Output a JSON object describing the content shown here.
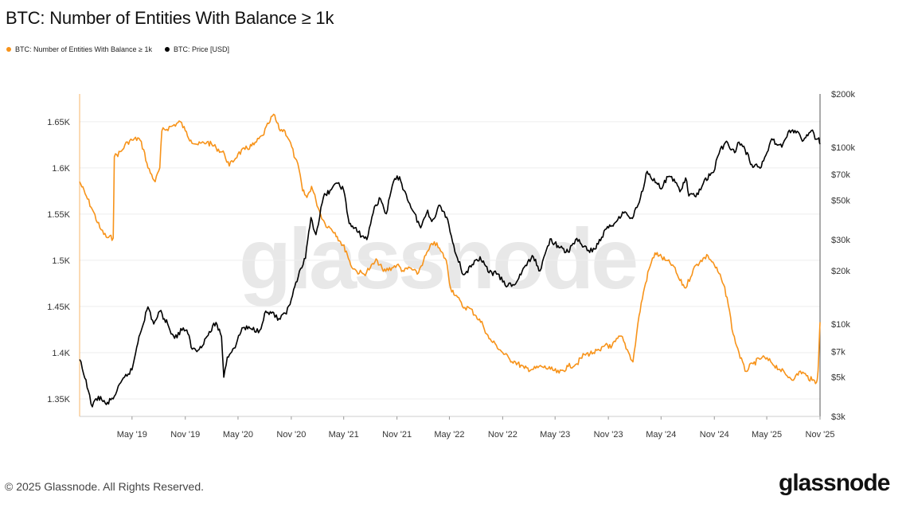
{
  "title": "BTC: Number of Entities With Balance ≥ 1k",
  "footer": "© 2025 Glassnode. All Rights Reserved.",
  "brand": "glassnode",
  "watermark": "glassnode",
  "colors": {
    "entities": "#f7931a",
    "price": "#000000",
    "grid": "#eeeeee",
    "axis": "#cccccc"
  },
  "chart_data": {
    "type": "line",
    "title": "BTC: Number of Entities With Balance ≥ 1k",
    "legend": "top-left",
    "grid": true,
    "x_ticks": [
      "May '19",
      "Nov '19",
      "May '20",
      "Nov '20",
      "May '21",
      "Nov '21",
      "May '22",
      "Nov '22",
      "May '23",
      "Nov '23",
      "May '24",
      "Nov '24",
      "May '25",
      "Nov '25"
    ],
    "x_tick_dates": [
      "2019-05-01",
      "2019-11-01",
      "2020-05-01",
      "2020-11-01",
      "2021-05-01",
      "2021-11-01",
      "2022-05-01",
      "2022-11-01",
      "2023-05-01",
      "2023-11-01",
      "2024-05-01",
      "2024-11-01",
      "2025-05-01",
      "2025-11-01"
    ],
    "xlim": [
      "2018-11-01",
      "2025-11-01"
    ],
    "left_axis": {
      "ticks": [
        1350000,
        1400000,
        1450000,
        1500000,
        1550000,
        1600000,
        1650000
      ],
      "tick_labels": [
        "1.35K",
        "1.4K",
        "1.45K",
        "1.5K",
        "1.55K",
        "1.6K",
        "1.65K"
      ],
      "ylim": [
        1331000,
        1680000
      ]
    },
    "right_axis": {
      "scale": "log",
      "ticks": [
        3000,
        5000,
        7000,
        10000,
        20000,
        30000,
        50000,
        70000,
        100000,
        200000
      ],
      "tick_labels": [
        "$3k",
        "$5k",
        "$7k",
        "$10k",
        "$20k",
        "$30k",
        "$50k",
        "$70k",
        "$100k",
        "$200k"
      ],
      "ylim": [
        3000,
        200000
      ]
    },
    "series": [
      {
        "name": "BTC: Number of Entities With Balance ≥ 1k",
        "axis": "left",
        "color": "#f7931a",
        "points": [
          [
            "2018-11-01",
            1585000
          ],
          [
            "2018-11-20",
            1572000
          ],
          [
            "2018-12-15",
            1555000
          ],
          [
            "2019-01-10",
            1535000
          ],
          [
            "2019-02-01",
            1525000
          ],
          [
            "2019-02-25",
            1524000
          ],
          [
            "2019-03-01",
            1612000
          ],
          [
            "2019-03-25",
            1618000
          ],
          [
            "2019-04-15",
            1628000
          ],
          [
            "2019-05-01",
            1630000
          ],
          [
            "2019-05-25",
            1632000
          ],
          [
            "2019-06-10",
            1620000
          ],
          [
            "2019-06-25",
            1600000
          ],
          [
            "2019-07-20",
            1585000
          ],
          [
            "2019-08-05",
            1600000
          ],
          [
            "2019-08-12",
            1640000
          ],
          [
            "2019-09-15",
            1645000
          ],
          [
            "2019-10-15",
            1650000
          ],
          [
            "2019-11-01",
            1640000
          ],
          [
            "2019-11-20",
            1630000
          ],
          [
            "2019-12-15",
            1625000
          ],
          [
            "2020-01-15",
            1628000
          ],
          [
            "2020-02-15",
            1622000
          ],
          [
            "2020-03-15",
            1615000
          ],
          [
            "2020-04-01",
            1602000
          ],
          [
            "2020-05-01",
            1615000
          ],
          [
            "2020-05-25",
            1620000
          ],
          [
            "2020-06-25",
            1625000
          ],
          [
            "2020-07-25",
            1635000
          ],
          [
            "2020-08-15",
            1648000
          ],
          [
            "2020-09-01",
            1658000
          ],
          [
            "2020-09-20",
            1642000
          ],
          [
            "2020-10-10",
            1640000
          ],
          [
            "2020-10-25",
            1630000
          ],
          [
            "2020-11-15",
            1610000
          ],
          [
            "2020-11-28",
            1598000
          ],
          [
            "2020-12-10",
            1575000
          ],
          [
            "2020-12-25",
            1568000
          ],
          [
            "2021-01-10",
            1580000
          ],
          [
            "2021-01-25",
            1565000
          ],
          [
            "2021-02-10",
            1550000
          ],
          [
            "2021-02-25",
            1540000
          ],
          [
            "2021-03-15",
            1535000
          ],
          [
            "2021-04-01",
            1530000
          ],
          [
            "2021-04-20",
            1520000
          ],
          [
            "2021-05-10",
            1510000
          ],
          [
            "2021-05-25",
            1495000
          ],
          [
            "2021-06-15",
            1488000
          ],
          [
            "2021-07-10",
            1485000
          ],
          [
            "2021-08-01",
            1492000
          ],
          [
            "2021-08-25",
            1500000
          ],
          [
            "2021-09-15",
            1488000
          ],
          [
            "2021-10-15",
            1492000
          ],
          [
            "2021-11-01",
            1495000
          ],
          [
            "2021-11-25",
            1488000
          ],
          [
            "2021-12-15",
            1492000
          ],
          [
            "2022-01-10",
            1485000
          ],
          [
            "2022-02-01",
            1500000
          ],
          [
            "2022-02-20",
            1512000
          ],
          [
            "2022-03-10",
            1520000
          ],
          [
            "2022-04-01",
            1510000
          ],
          [
            "2022-04-20",
            1500000
          ],
          [
            "2022-05-05",
            1470000
          ],
          [
            "2022-05-25",
            1462000
          ],
          [
            "2022-06-15",
            1450000
          ],
          [
            "2022-07-10",
            1448000
          ],
          [
            "2022-08-01",
            1440000
          ],
          [
            "2022-08-25",
            1430000
          ],
          [
            "2022-09-15",
            1415000
          ],
          [
            "2022-10-10",
            1408000
          ],
          [
            "2022-11-01",
            1400000
          ],
          [
            "2022-11-25",
            1393000
          ],
          [
            "2022-12-15",
            1390000
          ],
          [
            "2023-01-15",
            1383000
          ],
          [
            "2023-02-15",
            1382000
          ],
          [
            "2023-03-15",
            1385000
          ],
          [
            "2023-04-15",
            1382000
          ],
          [
            "2023-05-15",
            1378000
          ],
          [
            "2023-06-15",
            1385000
          ],
          [
            "2023-07-15",
            1388000
          ],
          [
            "2023-08-10",
            1398000
          ],
          [
            "2023-09-10",
            1400000
          ],
          [
            "2023-10-05",
            1402000
          ],
          [
            "2023-10-25",
            1410000
          ],
          [
            "2023-11-10",
            1405000
          ],
          [
            "2023-11-25",
            1412000
          ],
          [
            "2023-12-15",
            1418000
          ],
          [
            "2024-01-10",
            1400000
          ],
          [
            "2024-01-25",
            1390000
          ],
          [
            "2024-02-15",
            1440000
          ],
          [
            "2024-03-01",
            1465000
          ],
          [
            "2024-03-20",
            1490000
          ],
          [
            "2024-04-10",
            1508000
          ],
          [
            "2024-04-25",
            1505000
          ],
          [
            "2024-05-15",
            1500000
          ],
          [
            "2024-06-10",
            1495000
          ],
          [
            "2024-07-05",
            1478000
          ],
          [
            "2024-07-25",
            1470000
          ],
          [
            "2024-08-20",
            1490000
          ],
          [
            "2024-09-15",
            1500000
          ],
          [
            "2024-10-10",
            1505000
          ],
          [
            "2024-11-01",
            1495000
          ],
          [
            "2024-11-25",
            1480000
          ],
          [
            "2024-12-15",
            1460000
          ],
          [
            "2025-01-05",
            1420000
          ],
          [
            "2025-01-25",
            1400000
          ],
          [
            "2025-02-15",
            1380000
          ],
          [
            "2025-03-15",
            1388000
          ],
          [
            "2025-04-15",
            1395000
          ],
          [
            "2025-05-15",
            1390000
          ],
          [
            "2025-06-15",
            1382000
          ],
          [
            "2025-07-10",
            1375000
          ],
          [
            "2025-08-05",
            1372000
          ],
          [
            "2025-08-25",
            1380000
          ],
          [
            "2025-09-15",
            1375000
          ],
          [
            "2025-10-05",
            1370000
          ],
          [
            "2025-10-20",
            1368000
          ],
          [
            "2025-10-25",
            1380000
          ],
          [
            "2025-10-29",
            1410000
          ],
          [
            "2025-11-01",
            1433000
          ]
        ]
      },
      {
        "name": "BTC: Price [USD]",
        "axis": "right",
        "color": "#000000",
        "points": [
          [
            "2018-11-01",
            6300
          ],
          [
            "2018-11-15",
            5200
          ],
          [
            "2018-12-01",
            4200
          ],
          [
            "2018-12-15",
            3400
          ],
          [
            "2019-01-05",
            3900
          ],
          [
            "2019-02-01",
            3500
          ],
          [
            "2019-03-01",
            3900
          ],
          [
            "2019-04-05",
            5000
          ],
          [
            "2019-05-01",
            5500
          ],
          [
            "2019-05-25",
            8500
          ],
          [
            "2019-06-25",
            12500
          ],
          [
            "2019-07-15",
            10000
          ],
          [
            "2019-08-05",
            11800
          ],
          [
            "2019-09-01",
            10000
          ],
          [
            "2019-09-25",
            8300
          ],
          [
            "2019-10-25",
            9500
          ],
          [
            "2019-11-10",
            8800
          ],
          [
            "2019-11-25",
            7200
          ],
          [
            "2019-12-15",
            7100
          ],
          [
            "2020-01-15",
            8500
          ],
          [
            "2020-02-15",
            10200
          ],
          [
            "2020-03-05",
            8500
          ],
          [
            "2020-03-13",
            5000
          ],
          [
            "2020-03-25",
            6500
          ],
          [
            "2020-04-25",
            7700
          ],
          [
            "2020-05-15",
            9500
          ],
          [
            "2020-06-15",
            9400
          ],
          [
            "2020-07-15",
            9200
          ],
          [
            "2020-08-01",
            11500
          ],
          [
            "2020-09-01",
            11600
          ],
          [
            "2020-09-15",
            10500
          ],
          [
            "2020-10-15",
            11400
          ],
          [
            "2020-11-01",
            13800
          ],
          [
            "2020-11-25",
            18500
          ],
          [
            "2020-12-20",
            23500
          ],
          [
            "2021-01-08",
            40000
          ],
          [
            "2021-01-25",
            32000
          ],
          [
            "2021-02-20",
            52000
          ],
          [
            "2021-03-15",
            57000
          ],
          [
            "2021-04-14",
            63000
          ],
          [
            "2021-05-01",
            57000
          ],
          [
            "2021-05-20",
            37000
          ],
          [
            "2021-06-20",
            33000
          ],
          [
            "2021-07-20",
            30000
          ],
          [
            "2021-08-15",
            46000
          ],
          [
            "2021-09-05",
            51000
          ],
          [
            "2021-09-25",
            42000
          ],
          [
            "2021-10-20",
            64000
          ],
          [
            "2021-11-10",
            68000
          ],
          [
            "2021-11-25",
            57000
          ],
          [
            "2021-12-15",
            48000
          ],
          [
            "2022-01-22",
            35000
          ],
          [
            "2022-02-15",
            44000
          ],
          [
            "2022-03-01",
            38000
          ],
          [
            "2022-03-29",
            47000
          ],
          [
            "2022-04-25",
            39000
          ],
          [
            "2022-05-12",
            29000
          ],
          [
            "2022-06-18",
            19000
          ],
          [
            "2022-07-15",
            21000
          ],
          [
            "2022-08-15",
            24000
          ],
          [
            "2022-09-15",
            19500
          ],
          [
            "2022-10-15",
            19200
          ],
          [
            "2022-11-10",
            16500
          ],
          [
            "2022-12-15",
            16800
          ],
          [
            "2023-01-15",
            21000
          ],
          [
            "2023-02-15",
            24000
          ],
          [
            "2023-03-10",
            20000
          ],
          [
            "2023-04-14",
            30300
          ],
          [
            "2023-05-15",
            27000
          ],
          [
            "2023-06-15",
            25500
          ],
          [
            "2023-07-15",
            30500
          ],
          [
            "2023-08-20",
            26000
          ],
          [
            "2023-09-15",
            26500
          ],
          [
            "2023-10-25",
            34500
          ],
          [
            "2023-11-25",
            37500
          ],
          [
            "2023-12-20",
            43000
          ],
          [
            "2024-01-23",
            39500
          ],
          [
            "2024-02-20",
            52000
          ],
          [
            "2024-03-14",
            73000
          ],
          [
            "2024-04-15",
            63000
          ],
          [
            "2024-05-01",
            58000
          ],
          [
            "2024-05-25",
            68000
          ],
          [
            "2024-06-15",
            66000
          ],
          [
            "2024-07-05",
            56000
          ],
          [
            "2024-07-25",
            67000
          ],
          [
            "2024-08-05",
            53000
          ],
          [
            "2024-09-06",
            54000
          ],
          [
            "2024-09-28",
            65500
          ],
          [
            "2024-10-29",
            72000
          ],
          [
            "2024-11-12",
            88000
          ],
          [
            "2024-11-22",
            98000
          ],
          [
            "2024-12-17",
            106000
          ],
          [
            "2025-01-10",
            93000
          ],
          [
            "2025-01-21",
            106000
          ],
          [
            "2025-02-15",
            97000
          ],
          [
            "2025-03-10",
            80000
          ],
          [
            "2025-04-08",
            76000
          ],
          [
            "2025-05-10",
            103000
          ],
          [
            "2025-05-22",
            110000
          ],
          [
            "2025-06-22",
            100000
          ],
          [
            "2025-07-14",
            122000
          ],
          [
            "2025-08-14",
            123000
          ],
          [
            "2025-09-01",
            108000
          ],
          [
            "2025-09-20",
            116000
          ],
          [
            "2025-10-06",
            125000
          ],
          [
            "2025-10-15",
            111000
          ],
          [
            "2025-10-28",
            113000
          ],
          [
            "2025-11-01",
            104000
          ]
        ]
      }
    ]
  }
}
